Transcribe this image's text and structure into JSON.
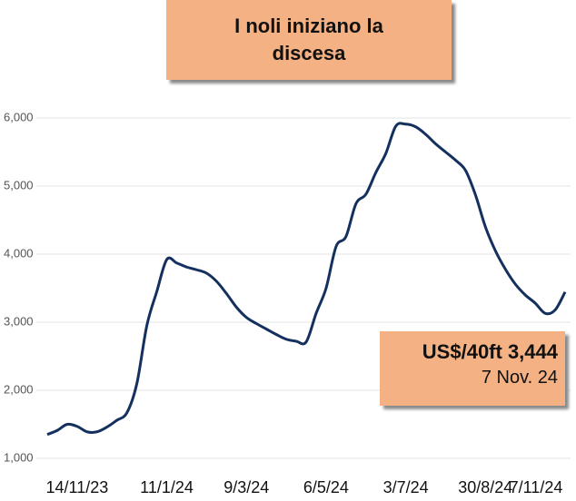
{
  "chart_data": {
    "type": "line",
    "title": "I noli iniziano la discesa",
    "annotation": [
      "US$/40ft 3,444",
      "7 Nov. 24"
    ],
    "categories": [
      null,
      null,
      null,
      "14/11/23",
      null,
      null,
      null,
      null,
      null,
      null,
      null,
      null,
      "11/1/24",
      null,
      null,
      null,
      null,
      null,
      null,
      null,
      "9/3/24",
      null,
      null,
      null,
      null,
      null,
      null,
      null,
      "6/5/24",
      null,
      null,
      null,
      null,
      null,
      null,
      null,
      "3/7/24",
      null,
      null,
      null,
      null,
      null,
      null,
      null,
      "30/8/24",
      null,
      null,
      null,
      null,
      null,
      null,
      null,
      "7/11/24"
    ],
    "values": [
      1350,
      1410,
      1500,
      1470,
      1390,
      1390,
      1460,
      1560,
      1670,
      2100,
      2950,
      3450,
      3920,
      3870,
      3810,
      3770,
      3720,
      3600,
      3420,
      3220,
      3070,
      2980,
      2900,
      2820,
      2750,
      2720,
      2710,
      3130,
      3500,
      4110,
      4260,
      4740,
      4880,
      5200,
      5480,
      5880,
      5910,
      5870,
      5760,
      5620,
      5500,
      5380,
      5230,
      4870,
      4400,
      4050,
      3780,
      3560,
      3400,
      3280,
      3130,
      3180,
      3444
    ],
    "color": "#14305e",
    "ylim": [
      1000,
      6000
    ],
    "yticks": [
      {
        "value": 1000,
        "label": "1,000"
      },
      {
        "value": 2000,
        "label": "2,000"
      },
      {
        "value": 3000,
        "label": "3,000"
      },
      {
        "value": 4000,
        "label": "4,000"
      },
      {
        "value": 5000,
        "label": "5,000"
      },
      {
        "value": 6000,
        "label": "6,000"
      }
    ],
    "grid": true
  }
}
